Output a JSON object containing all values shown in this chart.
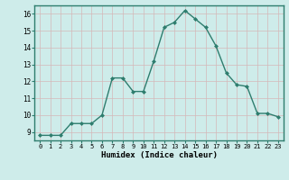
{
  "x": [
    0,
    1,
    2,
    3,
    4,
    5,
    6,
    7,
    8,
    9,
    10,
    11,
    12,
    13,
    14,
    15,
    16,
    17,
    18,
    19,
    20,
    21,
    22,
    23
  ],
  "y": [
    8.8,
    8.8,
    8.8,
    9.5,
    9.5,
    9.5,
    10.0,
    12.2,
    12.2,
    11.4,
    11.4,
    13.2,
    15.2,
    15.5,
    16.2,
    15.7,
    15.2,
    14.1,
    12.5,
    11.8,
    11.7,
    10.1,
    10.1,
    9.9
  ],
  "xlabel": "Humidex (Indice chaleur)",
  "ylim": [
    8.5,
    16.5
  ],
  "xlim": [
    -0.5,
    23.5
  ],
  "yticks": [
    9,
    10,
    11,
    12,
    13,
    14,
    15,
    16
  ],
  "xticks": [
    0,
    1,
    2,
    3,
    4,
    5,
    6,
    7,
    8,
    9,
    10,
    11,
    12,
    13,
    14,
    15,
    16,
    17,
    18,
    19,
    20,
    21,
    22,
    23
  ],
  "xtick_labels": [
    "0",
    "1",
    "2",
    "3",
    "4",
    "5",
    "6",
    "7",
    "8",
    "9",
    "10",
    "11",
    "12",
    "13",
    "14",
    "15",
    "16",
    "17",
    "18",
    "19",
    "20",
    "21",
    "22",
    "23"
  ],
  "line_color": "#2e7d6e",
  "marker_color": "#2e7d6e",
  "bg_color": "#ceecea",
  "grid_color": "#c0dedd",
  "title": ""
}
